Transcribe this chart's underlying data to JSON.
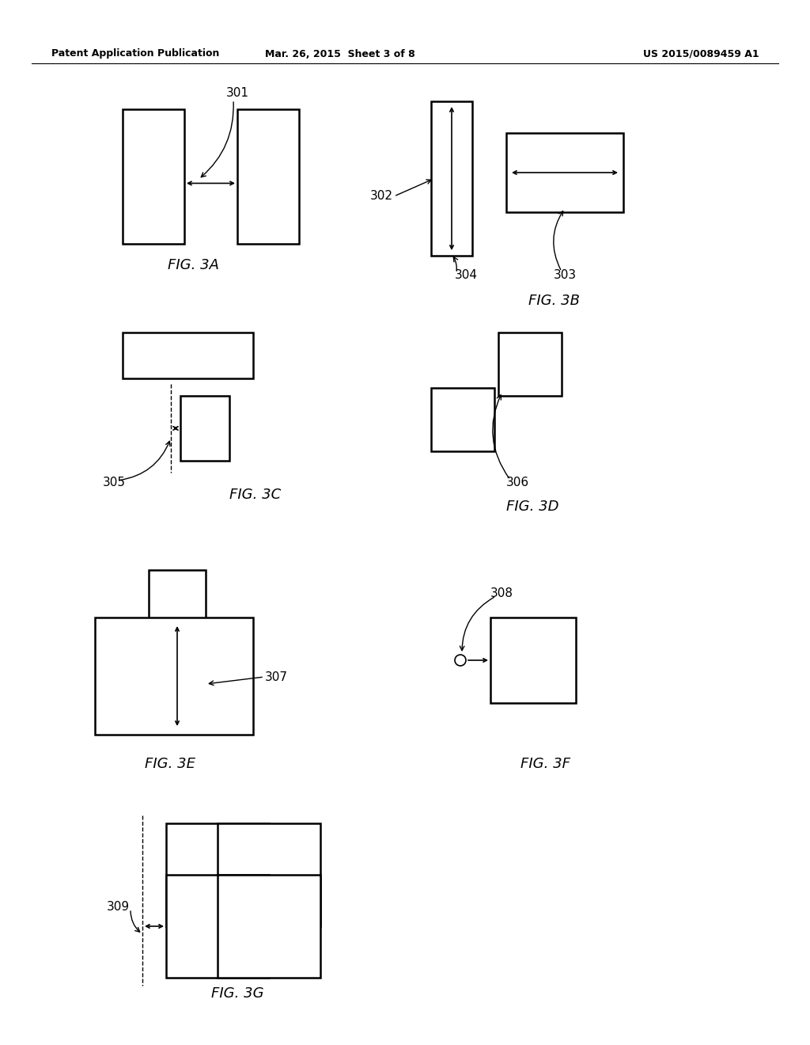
{
  "bg_color": "#ffffff",
  "line_color": "#000000",
  "header": {
    "left": "Patent Application Publication",
    "center": "Mar. 26, 2015  Sheet 3 of 8",
    "right": "US 2015/0089459 A1"
  }
}
